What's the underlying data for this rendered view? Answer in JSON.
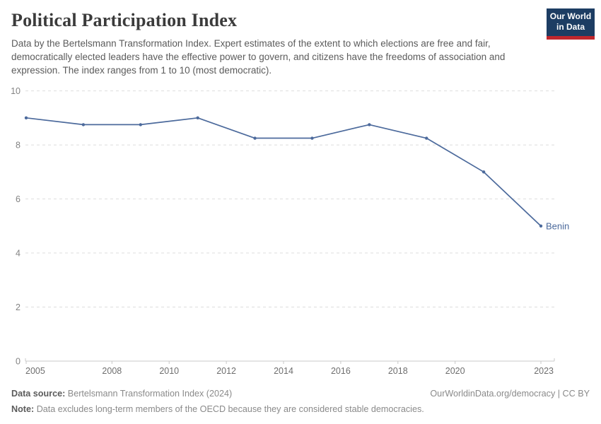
{
  "header": {
    "title": "Political Participation Index",
    "subtitle": "Data by the Bertelsmann Transformation Index. Expert estimates of the extent to which elections are free and fair, democratically elected leaders have the effective power to govern, and citizens have the freedoms of association and expression. The index ranges from 1 to 10 (most democratic).",
    "logo": {
      "line1": "Our World",
      "line2": "in Data"
    }
  },
  "chart_data": {
    "type": "line",
    "title": "Political Participation Index",
    "x": [
      2005,
      2007,
      2009,
      2011,
      2013,
      2015,
      2017,
      2019,
      2021,
      2023
    ],
    "series": [
      {
        "name": "Benin",
        "values": [
          9,
          8.75,
          8.75,
          9,
          8.25,
          8.25,
          8.75,
          8.25,
          7,
          5
        ]
      }
    ],
    "xlim": [
      2005,
      2023
    ],
    "ylim": [
      0,
      10
    ],
    "y_ticks": [
      0,
      2,
      4,
      6,
      8,
      10
    ],
    "x_tick_labels": [
      "2005",
      "2008",
      "2010",
      "2012",
      "2014",
      "2016",
      "2018",
      "2020",
      "2023"
    ],
    "x_tick_years": [
      2005,
      2008,
      2010,
      2012,
      2014,
      2016,
      2018,
      2020,
      2023
    ],
    "grid": "horizontal dashed",
    "legend_position": "end-of-line label"
  },
  "footer": {
    "datasource_label": "Data source:",
    "datasource_value": "Bertelsmann Transformation Index (2024)",
    "credit": "OurWorldinData.org/democracy | CC BY",
    "note_label": "Note:",
    "note_value": "Data excludes long-term members of the OECD because they are considered stable democracies."
  },
  "colors": {
    "line": "#4C6A9C",
    "entity_label": "#4C6A9C",
    "grid": "#dedede",
    "axis": "#c8c8c8",
    "y_tick_text": "#838383",
    "x_tick_text": "#6e6e6e",
    "logo_navy": "#1d3d63",
    "logo_red": "#c0272d"
  }
}
